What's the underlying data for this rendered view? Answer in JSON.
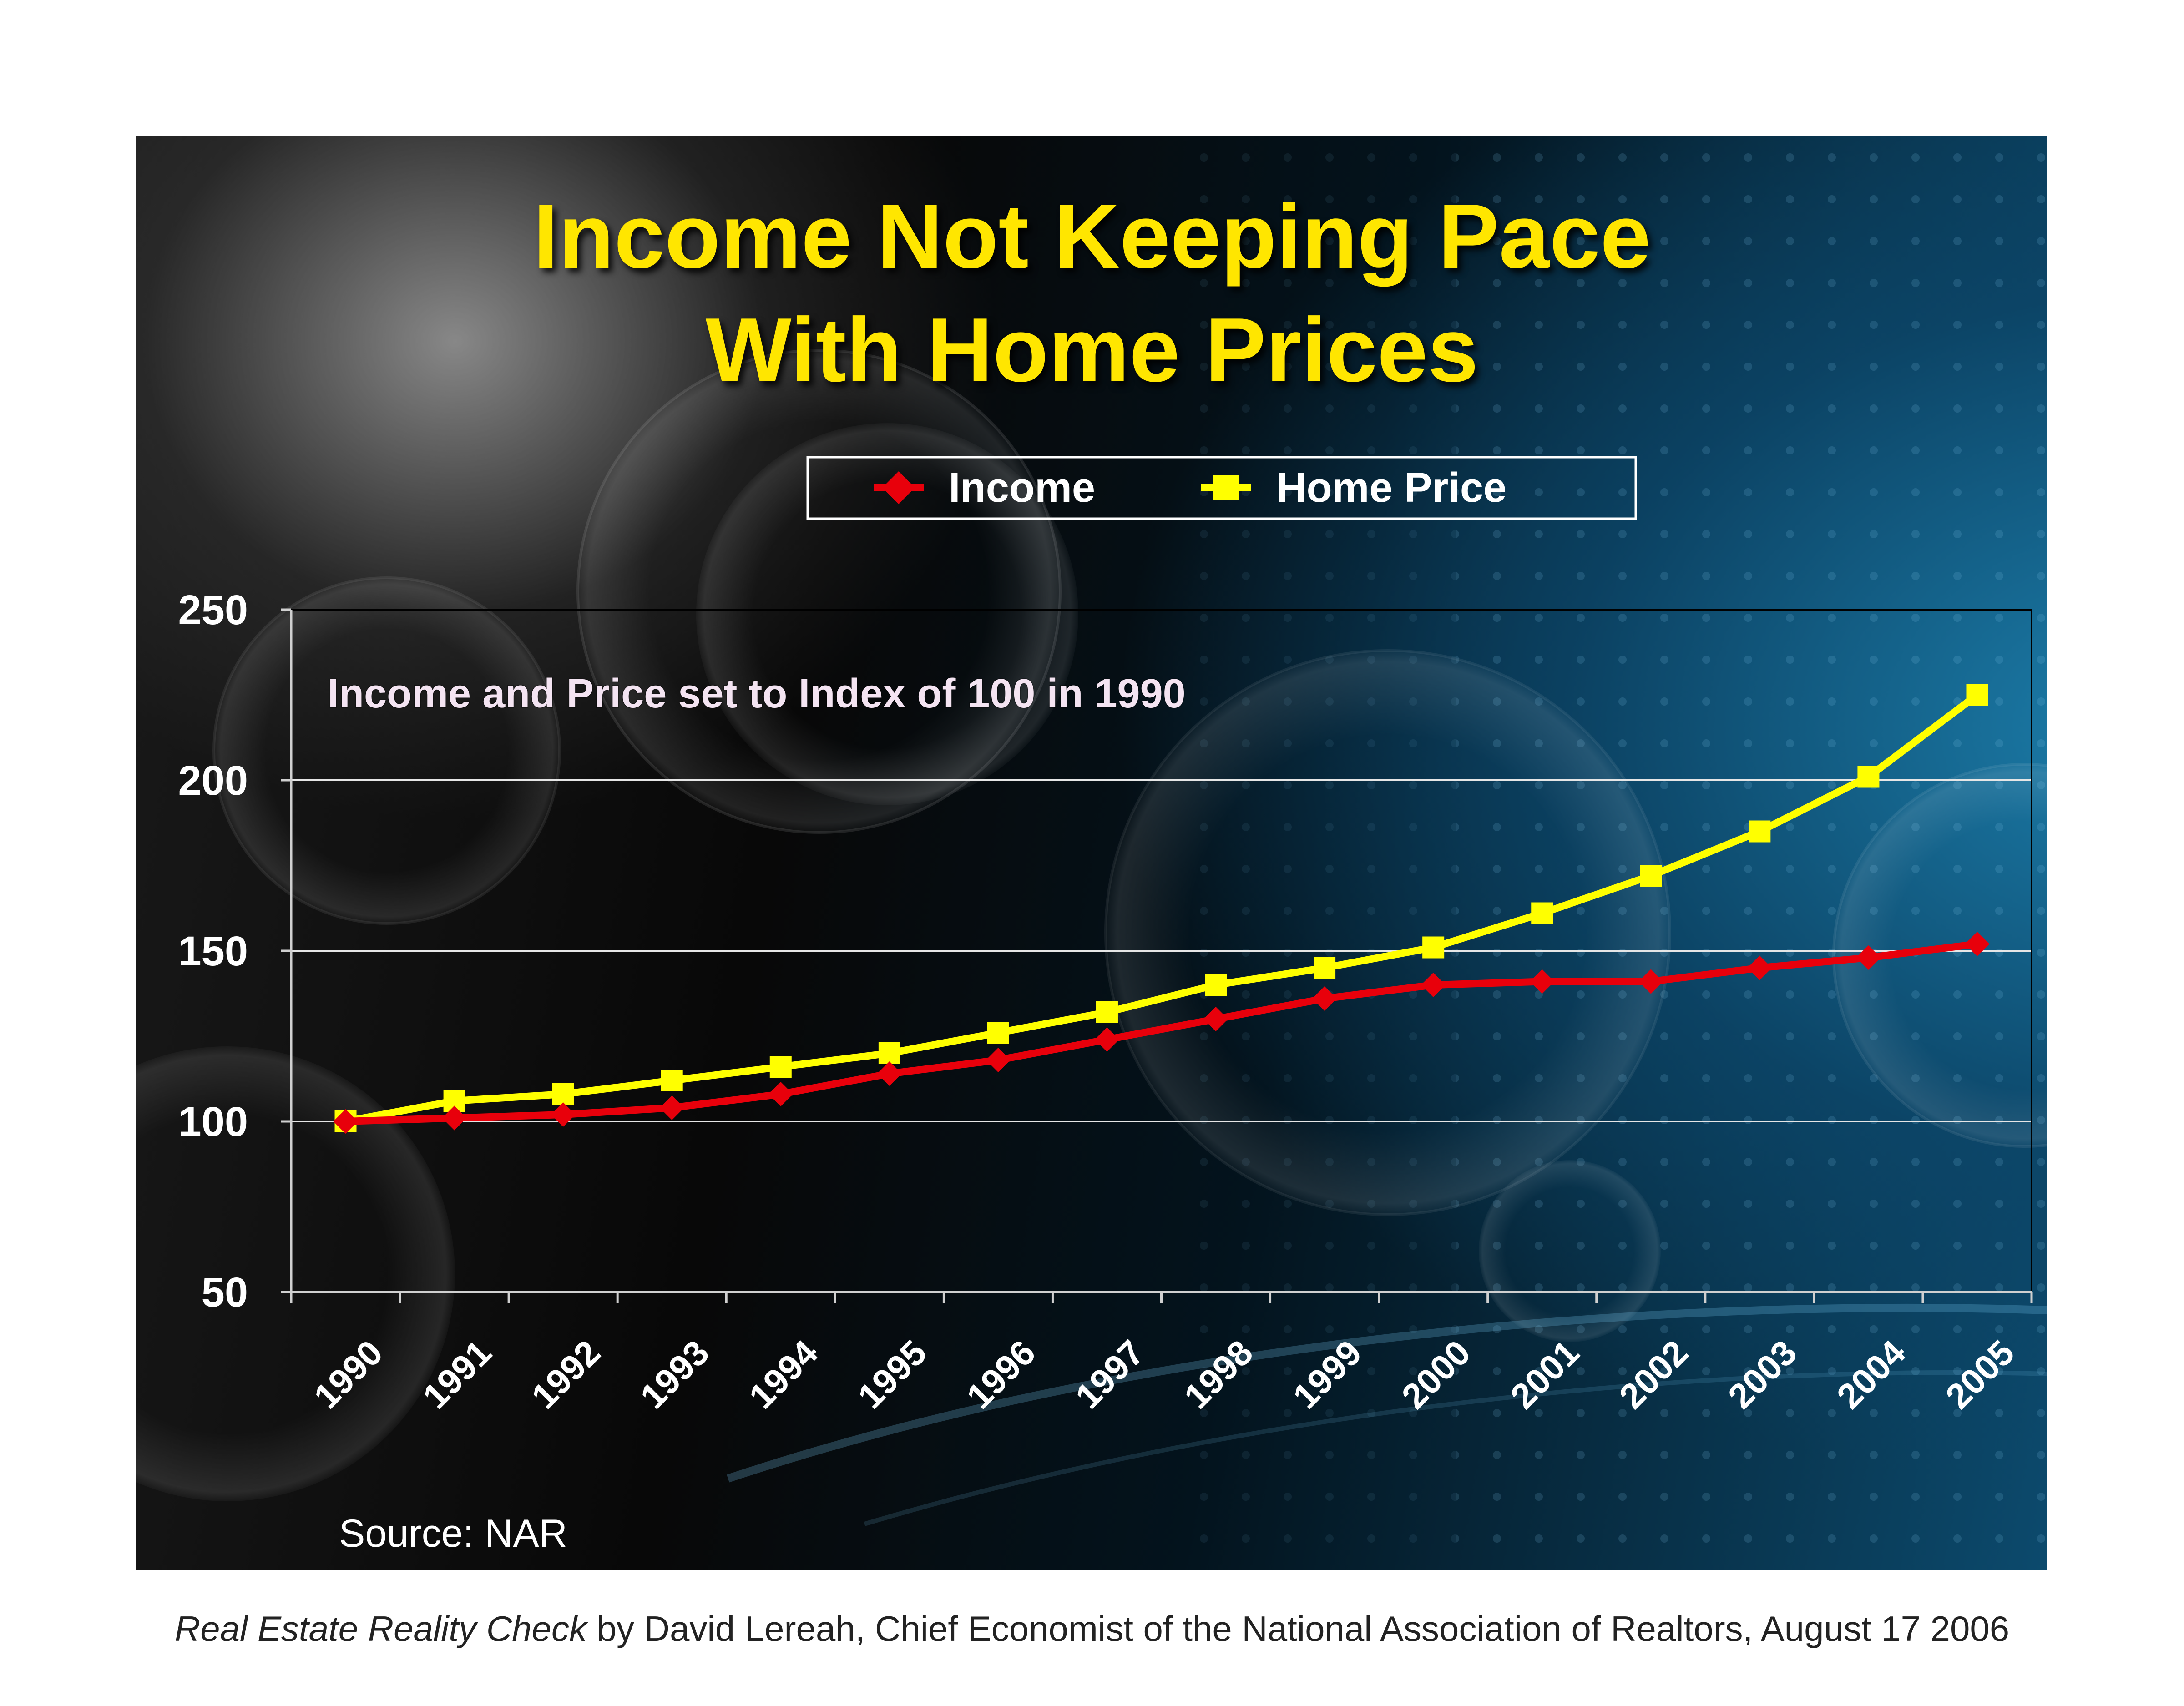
{
  "slide": {
    "title_line1": "Income Not Keeping Pace",
    "title_line2": "With Home Prices",
    "source": "Source: NAR"
  },
  "footer": {
    "book_title": "Real Estate Reality Check",
    "byline": " by David Lereah, Chief Economist of the National Association of Realtors, August 17 2006"
  },
  "chart_data": {
    "type": "line",
    "title": "Income Not Keeping Pace With Home Prices",
    "annotation": "Income and Price set to Index of 100 in 1990",
    "x": [
      "1990",
      "1991",
      "1992",
      "1993",
      "1994",
      "1995",
      "1996",
      "1997",
      "1998",
      "1999",
      "2000",
      "2001",
      "2002",
      "2003",
      "2004",
      "2005"
    ],
    "series": [
      {
        "name": "Income",
        "color": "#e8000b",
        "marker": "diamond",
        "values": [
          100,
          101,
          102,
          104,
          108,
          114,
          118,
          124,
          130,
          136,
          140,
          141,
          141,
          145,
          148,
          152
        ]
      },
      {
        "name": "Home Price",
        "color": "#ffff00",
        "marker": "square",
        "values": [
          100,
          106,
          108,
          112,
          116,
          120,
          126,
          132,
          140,
          145,
          151,
          161,
          172,
          185,
          201,
          225
        ]
      }
    ],
    "ylim": [
      50,
      250
    ],
    "yticks": [
      50,
      100,
      150,
      200,
      250
    ],
    "grid": true,
    "legend_position": "top"
  }
}
